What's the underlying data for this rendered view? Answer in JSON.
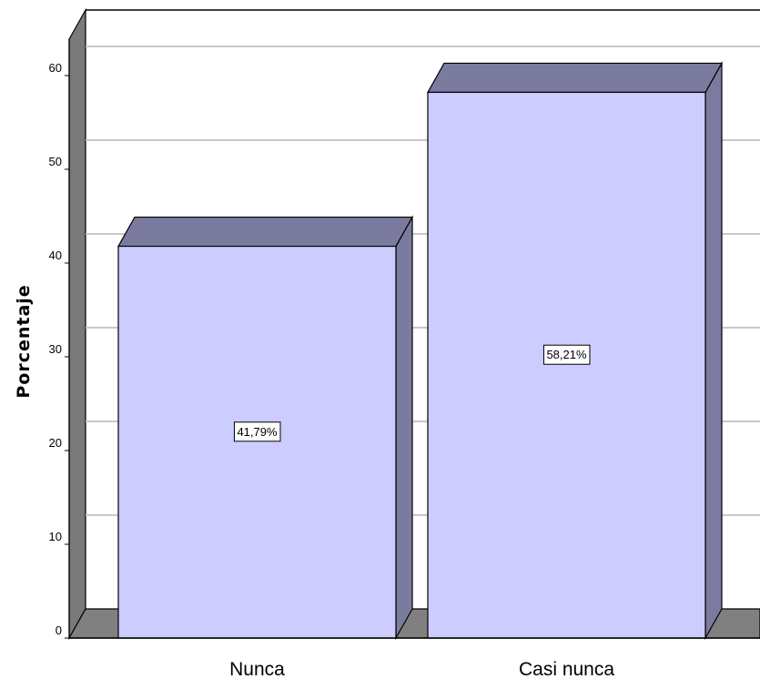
{
  "chart_data": {
    "type": "bar",
    "categories": [
      "Nunca",
      "Casi nunca"
    ],
    "values": [
      41.79,
      58.21
    ],
    "data_labels": [
      "41,79%",
      "58,21%"
    ],
    "title": "",
    "xlabel": "",
    "ylabel": "Porcentaje",
    "ylim": [
      0,
      60
    ],
    "yticks": [
      "0",
      "10",
      "20",
      "30",
      "40",
      "50",
      "60"
    ],
    "grid": true,
    "style": "3d",
    "colors": {
      "bar_front": "#ccccff",
      "bar_top": "#7b7ba0",
      "bar_side": "#7b7ba0",
      "left_wall": "#7a7a7a",
      "floor": "#808080",
      "gridline": "#c8c8c8"
    }
  }
}
